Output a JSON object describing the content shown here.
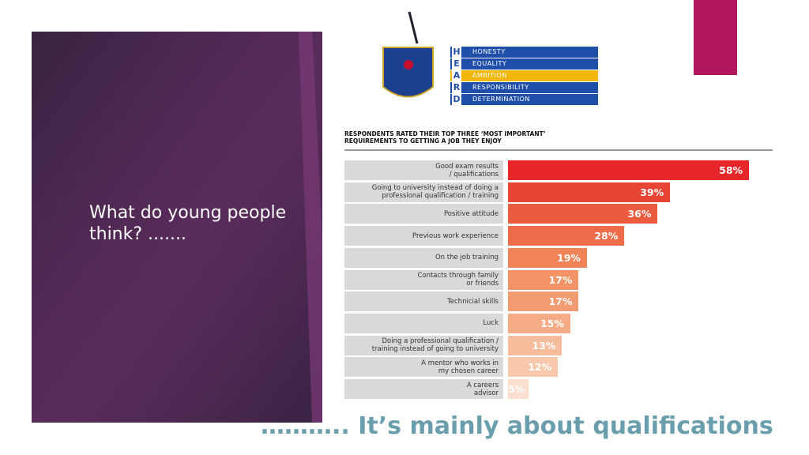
{
  "slide": {
    "heading": "What do young people think? .......",
    "caption": "……….. It’s mainly about qualifications",
    "logo": {
      "letters": [
        "H",
        "E",
        "A",
        "R",
        "D"
      ],
      "values": [
        "HONESTY",
        "EQUALITY",
        "AMBITION",
        "RESPONSIBILITY",
        "DETERMINATION"
      ]
    }
  },
  "chart_data": {
    "type": "hbar",
    "title": "RESPONDENTS RATED THEIR TOP THREE ‘MOST IMPORTANT’\nREQUIREMENTS TO GETTING A JOB THEY ENJOY",
    "categories": [
      "Good exam results\n/ qualifications",
      "Going to university instead of doing a\nprofessional qualification / training",
      "Positive attitude",
      "Previous work experience",
      "On the job training",
      "Contacts through family\nor friends",
      "Technicial skills",
      "Luck",
      "Doing a professional qualification /\ntraining instead of going to university",
      "A mentor who works in\nmy chosen career",
      "A careers\nadvisor"
    ],
    "values": [
      58,
      39,
      36,
      28,
      19,
      17,
      17,
      15,
      13,
      12,
      5
    ],
    "value_labels": [
      "58%",
      "39%",
      "36%",
      "28%",
      "19%",
      "17%",
      "17%",
      "15%",
      "13%",
      "12%",
      "5%"
    ],
    "colors": [
      "#e8262a",
      "#ea4534",
      "#ec5a3f",
      "#ee6c49",
      "#f08458",
      "#f29468",
      "#f39b72",
      "#f5ab85",
      "#f7bc9b",
      "#f8c8ab",
      "#fbe0d0"
    ]
  }
}
